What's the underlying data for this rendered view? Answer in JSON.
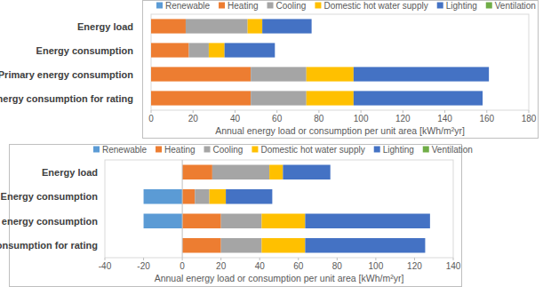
{
  "chart_data": [
    {
      "type": "bar",
      "orientation": "horizontal",
      "stacked": true,
      "grid": false,
      "legend": "top",
      "categories": [
        "Energy load",
        "Energy consumption",
        "Primary energy consumption",
        "Primary energy consumption for rating"
      ],
      "series": [
        {
          "name": "Renewable",
          "color": "#5b9bd5",
          "values": [
            0,
            0,
            0,
            0
          ]
        },
        {
          "name": "Heating",
          "color": "#ed7d31",
          "values": [
            16.5,
            18,
            47.5,
            47.5
          ]
        },
        {
          "name": "Cooling",
          "color": "#a5a5a5",
          "values": [
            29.5,
            9.5,
            26.5,
            26.5
          ]
        },
        {
          "name": "Domestic hot water supply",
          "color": "#ffc000",
          "values": [
            7,
            7.5,
            22.5,
            22.5
          ]
        },
        {
          "name": "Lighting",
          "color": "#4472c4",
          "values": [
            23.5,
            24,
            64.5,
            61.5
          ]
        },
        {
          "name": "Ventilation",
          "color": "#70ad47",
          "values": [
            0,
            0,
            0,
            0
          ]
        }
      ],
      "xlim": [
        0,
        180
      ],
      "xticks": [
        0,
        20,
        40,
        60,
        80,
        100,
        120,
        140,
        160,
        180
      ],
      "x_label": "Annual energy load or consumption per unit area [kWh/m²yr]"
    },
    {
      "type": "bar",
      "orientation": "horizontal",
      "stacked": true,
      "grid": false,
      "legend": "top",
      "categories": [
        "Energy load",
        "Energy consumption",
        "Primary energy consumption",
        "Primary energy consumption for rating"
      ],
      "series": [
        {
          "name": "Renewable",
          "color": "#5b9bd5",
          "values": [
            0,
            -20,
            -20,
            0
          ]
        },
        {
          "name": "Heating",
          "color": "#ed7d31",
          "values": [
            15.5,
            6.5,
            20,
            20
          ]
        },
        {
          "name": "Cooling",
          "color": "#a5a5a5",
          "values": [
            29.5,
            7.5,
            21,
            21
          ]
        },
        {
          "name": "Domestic hot water supply",
          "color": "#ffc000",
          "values": [
            7,
            8.5,
            22.5,
            22.5
          ]
        },
        {
          "name": "Lighting",
          "color": "#4472c4",
          "values": [
            24.5,
            24,
            64.5,
            62
          ]
        },
        {
          "name": "Ventilation",
          "color": "#70ad47",
          "values": [
            0,
            0,
            0,
            0
          ]
        }
      ],
      "xlim": [
        -40,
        140
      ],
      "xticks": [
        -40,
        -20,
        0,
        20,
        40,
        60,
        80,
        100,
        120,
        140
      ],
      "x_label": "Annual energy load or consumption per unit area [kWh/m²yr]"
    }
  ]
}
